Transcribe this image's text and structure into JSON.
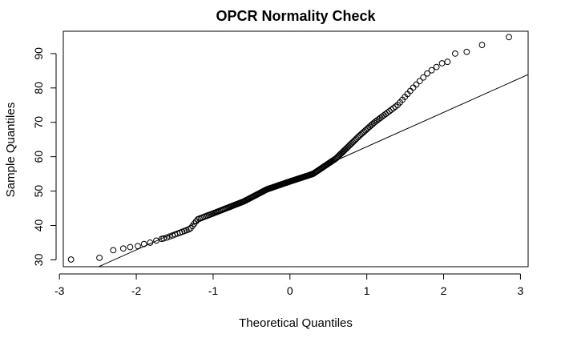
{
  "chart_data": {
    "type": "scatter",
    "title": "OPCR Normality Check",
    "xlabel": "Theoretical Quantiles",
    "ylabel": "Sample Quantiles",
    "xlim": [
      -2.95,
      3.1
    ],
    "ylim": [
      28.0,
      96.5
    ],
    "xticks": [
      -3,
      -2,
      -1,
      0,
      1,
      2,
      3
    ],
    "yticks": [
      30,
      40,
      50,
      60,
      70,
      80,
      90
    ],
    "grid": false,
    "reference_line": {
      "intercept": 52.9,
      "slope": 10.0
    },
    "anchors": [
      [
        -3.0,
        29.0
      ],
      [
        -2.4,
        31.5
      ],
      [
        -2.0,
        34.0
      ],
      [
        -1.6,
        36.5
      ],
      [
        -1.3,
        39.0
      ],
      [
        -1.2,
        41.8
      ],
      [
        -1.0,
        43.5
      ],
      [
        -0.6,
        47.0
      ],
      [
        -0.3,
        50.5
      ],
      [
        0.0,
        52.8
      ],
      [
        0.3,
        55.0
      ],
      [
        0.6,
        59.5
      ],
      [
        0.9,
        66.0
      ],
      [
        1.1,
        70.0
      ],
      [
        1.4,
        75.0
      ],
      [
        1.6,
        80.0
      ],
      [
        1.8,
        84.5
      ],
      [
        2.0,
        87.5
      ],
      [
        2.2,
        90.5
      ],
      [
        3.0,
        95.0
      ]
    ],
    "points": [
      [
        -2.85,
        30.1
      ],
      [
        -2.48,
        30.6
      ],
      [
        -2.3,
        32.8
      ],
      [
        -2.17,
        33.3
      ],
      [
        -2.08,
        33.7
      ],
      [
        -1.98,
        34.0
      ],
      [
        -1.9,
        34.6
      ],
      [
        -1.82,
        35.0
      ],
      [
        -1.74,
        35.6
      ],
      [
        -1.67,
        36.1
      ],
      [
        2.05,
        87.6
      ],
      [
        2.15,
        90.0
      ],
      [
        2.3,
        90.5
      ],
      [
        2.5,
        92.5
      ],
      [
        2.85,
        94.8
      ]
    ],
    "n_points": 230
  }
}
